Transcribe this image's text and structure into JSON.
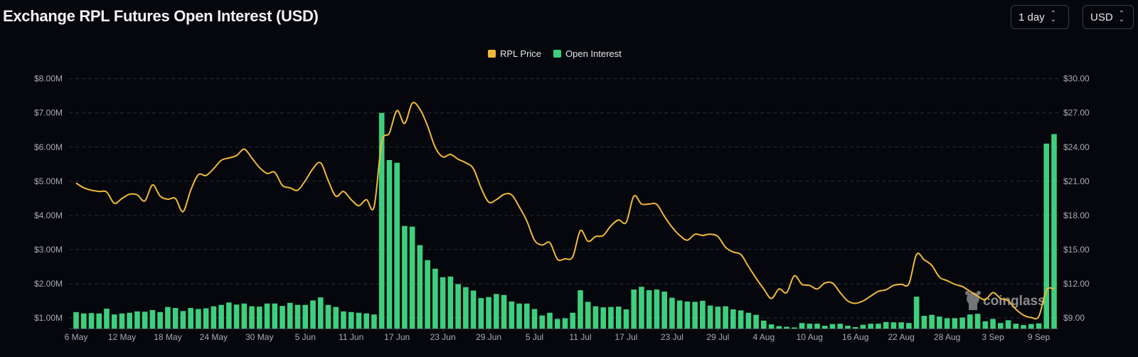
{
  "header": {
    "title": "Exchange RPL Futures Open Interest (USD)",
    "interval_select": "1 day",
    "currency_select": "USD"
  },
  "watermark": "coinglass",
  "chart_data": {
    "type": "bar+line",
    "title": "Exchange RPL Futures Open Interest (USD)",
    "legend": {
      "position": "top-center",
      "entries": [
        "RPL Price",
        "Open Interest"
      ]
    },
    "grid": true,
    "x_ticks": [
      "6 May",
      "12 May",
      "18 May",
      "24 May",
      "30 May",
      "5 Jun",
      "11 Jun",
      "17 Jun",
      "23 Jun",
      "29 Jun",
      "5 Jul",
      "11 Jul",
      "17 Jul",
      "23 Jul",
      "29 Jul",
      "4 Aug",
      "10 Aug",
      "16 Aug",
      "22 Aug",
      "28 Aug",
      "3 Sep",
      "9 Sep"
    ],
    "x_range": [
      "6 May",
      "11 Sep"
    ],
    "y_left": {
      "label_unit": "USD (millions)",
      "ticks": [
        "$1.00M",
        "$2.00M",
        "$3.00M",
        "$4.00M",
        "$5.00M",
        "$6.00M",
        "$7.00M",
        "$8.00M"
      ],
      "ylim": [
        0.7,
        8
      ]
    },
    "y_right": {
      "ticks": [
        "$9.00",
        "$12.00",
        "$15.00",
        "$18.00",
        "$21.00",
        "$24.00",
        "$27.00",
        "$30.00"
      ],
      "ylim": [
        8.1,
        30
      ]
    },
    "colors": {
      "RPL Price": "#f0b93a",
      "Open Interest": "#3ecf7e"
    },
    "series": [
      {
        "name": "Open Interest",
        "type": "bar",
        "axis": "left",
        "unit": "USD millions",
        "values": [
          1.17,
          1.13,
          1.14,
          1.13,
          1.27,
          1.1,
          1.13,
          1.15,
          1.19,
          1.18,
          1.23,
          1.17,
          1.32,
          1.29,
          1.2,
          1.29,
          1.26,
          1.28,
          1.34,
          1.38,
          1.45,
          1.39,
          1.42,
          1.34,
          1.33,
          1.42,
          1.42,
          1.35,
          1.44,
          1.38,
          1.38,
          1.51,
          1.6,
          1.38,
          1.32,
          1.19,
          1.17,
          1.15,
          1.13,
          1.1,
          7.0,
          5.62,
          5.54,
          3.69,
          3.67,
          3.13,
          2.69,
          2.44,
          2.19,
          2.21,
          1.99,
          1.9,
          1.8,
          1.58,
          1.61,
          1.7,
          1.67,
          1.48,
          1.42,
          1.42,
          1.26,
          1.07,
          1.15,
          0.97,
          0.99,
          1.15,
          1.81,
          1.47,
          1.34,
          1.31,
          1.32,
          1.33,
          1.25,
          1.83,
          1.91,
          1.81,
          1.83,
          1.77,
          1.59,
          1.51,
          1.48,
          1.47,
          1.5,
          1.36,
          1.33,
          1.34,
          1.25,
          1.22,
          1.15,
          1.09,
          0.92,
          0.81,
          0.76,
          0.74,
          0.72,
          0.85,
          0.83,
          0.83,
          0.77,
          0.82,
          0.83,
          0.77,
          0.73,
          0.8,
          0.83,
          0.83,
          0.88,
          0.87,
          0.87,
          0.85,
          1.62,
          1.06,
          1.09,
          1.04,
          0.99,
          0.99,
          1.01,
          1.1,
          1.12,
          0.9,
          0.97,
          0.85,
          0.93,
          0.83,
          0.79,
          0.82,
          0.84,
          6.1,
          6.38
        ]
      },
      {
        "name": "RPL Price",
        "type": "line",
        "axis": "right",
        "unit": "USD",
        "values": [
          20.84,
          20.42,
          20.21,
          20.1,
          20.05,
          19.06,
          19.48,
          19.86,
          19.8,
          19.27,
          20.67,
          19.69,
          19.42,
          19.48,
          18.33,
          20.21,
          21.57,
          21.5,
          22.1,
          22.83,
          23.04,
          23.25,
          23.81,
          23.04,
          22.2,
          21.68,
          21.78,
          20.63,
          20.42,
          20.21,
          21.05,
          22.1,
          22.62,
          21.05,
          19.69,
          20.1,
          19.38,
          18.85,
          19.38,
          18.75,
          24.4,
          25.23,
          27.2,
          26.07,
          27.85,
          27.32,
          25.86,
          23.98,
          23.14,
          23.35,
          22.93,
          22.62,
          22.1,
          20.42,
          19.17,
          19.38,
          19.84,
          19.8,
          18.75,
          17.5,
          15.82,
          15.4,
          15.61,
          14.15,
          14.19,
          14.36,
          16.66,
          15.72,
          16.14,
          16.24,
          17.08,
          17.6,
          17.39,
          19.69,
          19.0,
          19.0,
          18.96,
          17.91,
          16.97,
          16.24,
          15.82,
          16.35,
          16.24,
          16.35,
          16.14,
          15.2,
          14.78,
          14.57,
          13.52,
          12.48,
          11.54,
          10.7,
          11.54,
          11.22,
          12.69,
          11.95,
          11.85,
          11.54,
          12.06,
          12.06,
          11.22,
          10.49,
          10.28,
          10.49,
          10.91,
          11.33,
          11.47,
          11.85,
          11.95,
          12.0,
          14.57,
          14.1,
          13.6,
          12.58,
          12.27,
          11.95,
          11.75,
          11.33,
          10.91,
          10.6,
          11.22,
          10.7,
          10.49,
          9.76,
          9.24,
          9.03,
          9.13,
          11.43,
          11.54
        ]
      }
    ]
  }
}
